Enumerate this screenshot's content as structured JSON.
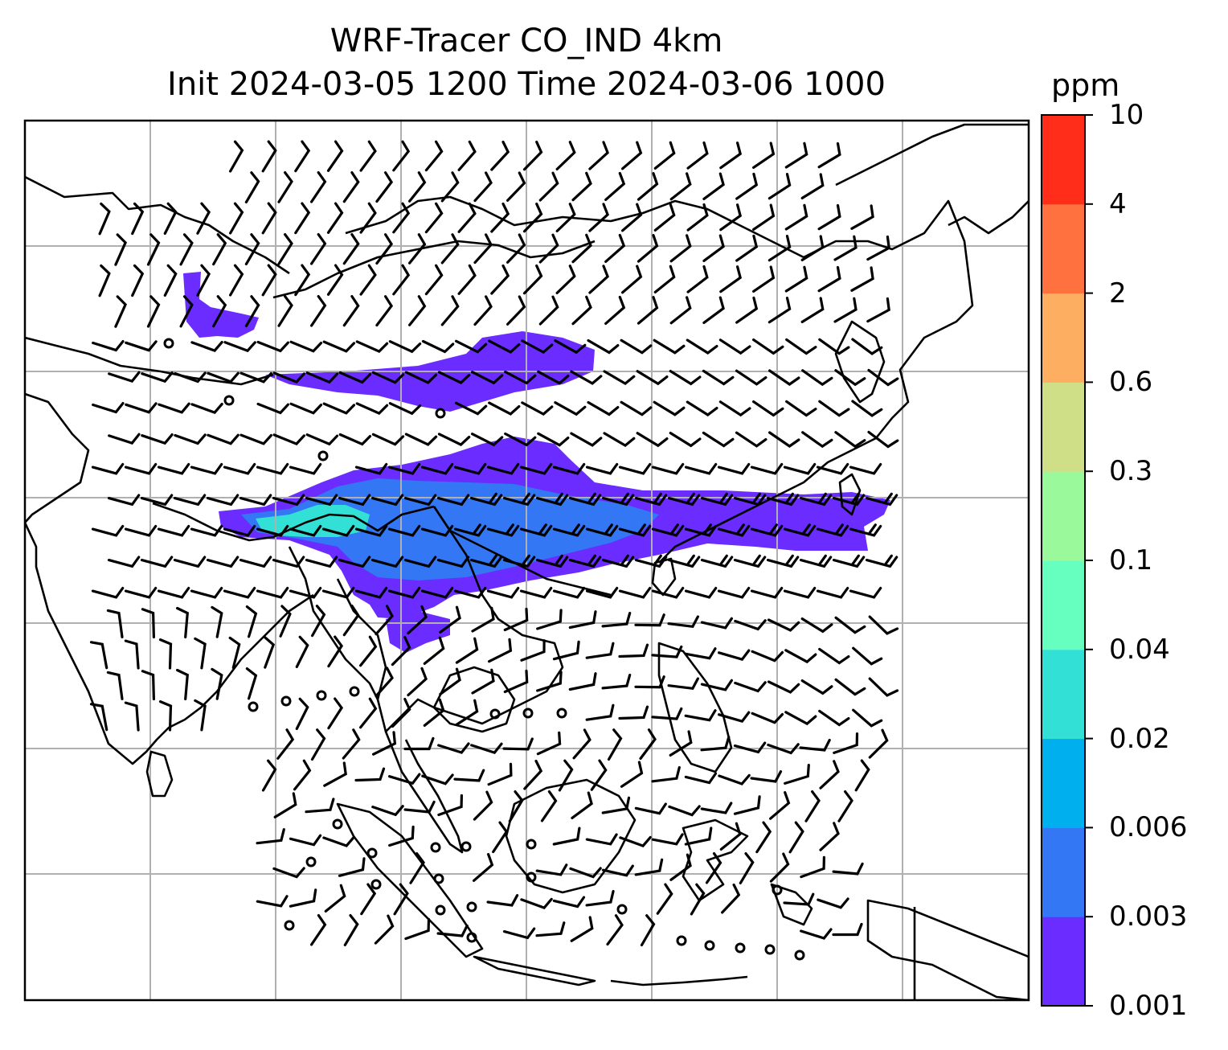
{
  "title": {
    "line1": "WRF-Tracer CO_IND 4km",
    "line2": "Init 2024-03-05 1200 Time 2024-03-06 1000"
  },
  "colorbar": {
    "unit": "ppm",
    "levels": [
      "0.001",
      "0.003",
      "0.006",
      "0.02",
      "0.04",
      "0.1",
      "0.3",
      "0.6",
      "2",
      "4",
      "10"
    ],
    "colors": [
      "#6a2cff",
      "#3377f5",
      "#00b0ee",
      "#33e0d6",
      "#66ffbf",
      "#99f99b",
      "#cedf88",
      "#fdae61",
      "#ff7240",
      "#ff2d1a"
    ]
  },
  "map": {
    "grid": "on",
    "plume_colors": [
      "#6a2cff",
      "#3377f5",
      "#33e0d6"
    ],
    "wind_symbol": "barb",
    "coastline_color": "#000000",
    "grid_color": "#b0b0b0"
  }
}
